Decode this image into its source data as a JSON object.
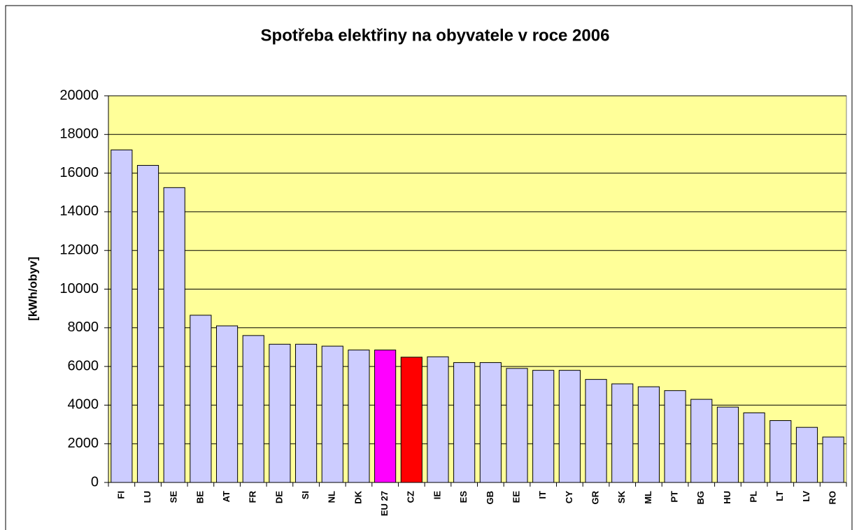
{
  "chart_data": {
    "type": "bar",
    "title": "Spotřeba elektřiny na obyvatele v roce 2006",
    "y_label": "[kWh/obyv]",
    "categories": [
      "FI",
      "LU",
      "SE",
      "BE",
      "AT",
      "FR",
      "DE",
      "SI",
      "NL",
      "DK",
      "EU 27",
      "CZ",
      "IE",
      "ES",
      "GB",
      "EE",
      "IT",
      "CY",
      "GR",
      "SK",
      "ML",
      "PT",
      "BG",
      "HU",
      "PL",
      "LT",
      "LV",
      "RO"
    ],
    "values": [
      17200,
      16400,
      15250,
      8650,
      8100,
      7600,
      7150,
      7150,
      7050,
      6850,
      6850,
      6480,
      6500,
      6200,
      6200,
      5900,
      5800,
      5800,
      5330,
      5100,
      4950,
      4750,
      4300,
      3900,
      3600,
      3200,
      2850,
      2350
    ],
    "colors": [
      "#ccccff",
      "#ccccff",
      "#ccccff",
      "#ccccff",
      "#ccccff",
      "#ccccff",
      "#ccccff",
      "#ccccff",
      "#ccccff",
      "#ccccff",
      "#ff00ff",
      "#ff0000",
      "#ccccff",
      "#ccccff",
      "#ccccff",
      "#ccccff",
      "#ccccff",
      "#ccccff",
      "#ccccff",
      "#ccccff",
      "#ccccff",
      "#ccccff",
      "#ccccff",
      "#ccccff",
      "#ccccff",
      "#ccccff",
      "#ccccff",
      "#ccccff"
    ],
    "plot_background": "#ffff99",
    "ylim": [
      0,
      20000
    ],
    "yticks": [
      0,
      2000,
      4000,
      6000,
      8000,
      10000,
      12000,
      14000,
      16000,
      18000,
      20000
    ],
    "grid": true
  }
}
